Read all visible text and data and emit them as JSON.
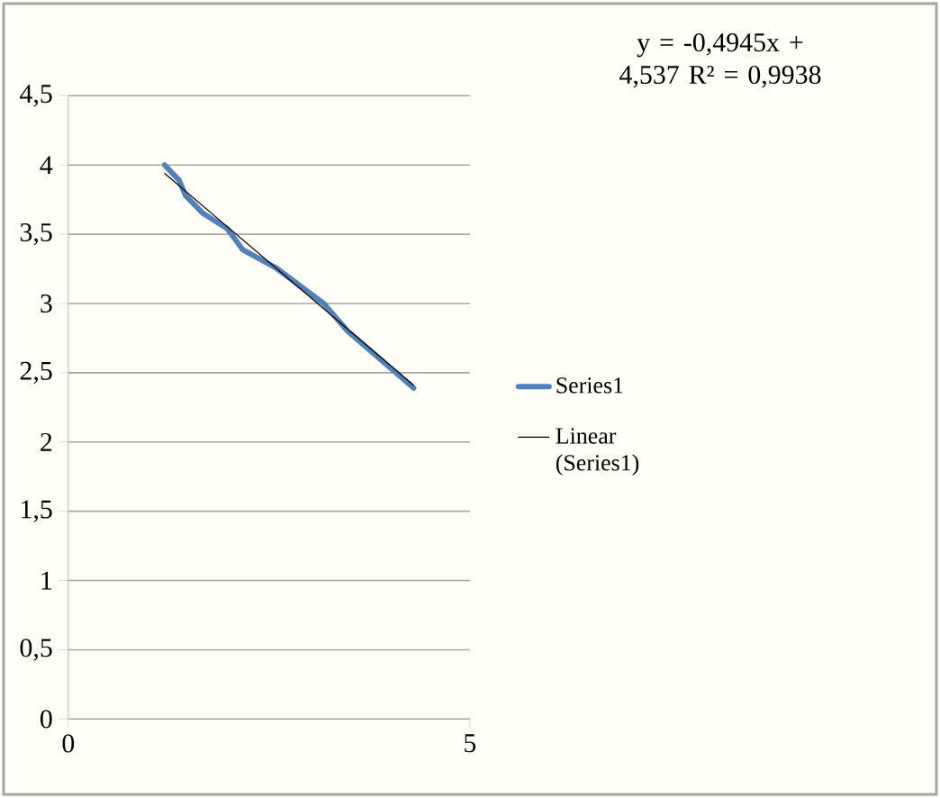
{
  "chart_data": {
    "type": "line",
    "xlim": [
      0,
      5
    ],
    "ylim": [
      0,
      4.5
    ],
    "xticks": [
      0,
      5
    ],
    "yticks": [
      0,
      {
        "value": 0.5,
        "label": "0,5"
      },
      1,
      {
        "value": 1.5,
        "label": "1,5"
      },
      2,
      {
        "value": 2.5,
        "label": "2,5"
      },
      3,
      {
        "value": 3.5,
        "label": "3,5"
      },
      4,
      {
        "value": 4.5,
        "label": "4,5"
      }
    ],
    "grid": "y",
    "legend": "right",
    "marker": "none",
    "annotations": [
      "y = -0,4945x + 4,537 R² = 0,9938"
    ],
    "series": [
      {
        "name": "Series1",
        "color": "#4f81bd",
        "x": [
          1.2,
          1.38,
          1.46,
          1.68,
          1.98,
          2.17,
          2.58,
          3.18,
          3.48,
          4.3
        ],
        "values": [
          4.0,
          3.89,
          3.78,
          3.65,
          3.54,
          3.39,
          3.26,
          3.0,
          2.8,
          2.39
        ]
      },
      {
        "name": "Linear (Series1)",
        "type": "line",
        "color": "#000000",
        "x": [
          1.2,
          4.3
        ],
        "values": [
          3.94,
          2.41
        ]
      }
    ]
  }
}
